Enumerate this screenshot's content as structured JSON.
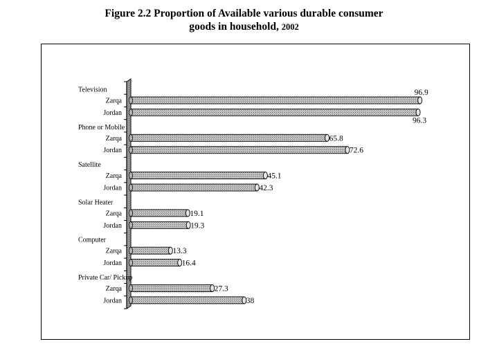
{
  "figure": {
    "title_line1": "Figure 2.2 Proportion of Available various durable consumer",
    "title_line2": "goods in household,",
    "title_year": "2002"
  },
  "chart_data": {
    "type": "bar",
    "orientation": "horizontal",
    "title": "Figure 2.2 Proportion of Available various durable consumer goods in household, 2002",
    "xlim": [
      0,
      100
    ],
    "grid": false,
    "legend": "none",
    "bar_color": "#bdbdbd",
    "groups": [
      {
        "category": "Television",
        "bars": [
          {
            "label": "Zarqa",
            "value": 96.9,
            "value_text": "96.9"
          },
          {
            "label": "Jordan",
            "value": 96.3,
            "value_text": "96.3"
          }
        ]
      },
      {
        "category": "Phone or Mobile",
        "bars": [
          {
            "label": "Zarqa",
            "value": 65.8,
            "value_text": "65.8"
          },
          {
            "label": "Jordan",
            "value": 72.6,
            "value_text": "72.6"
          }
        ]
      },
      {
        "category": "Satellite",
        "bars": [
          {
            "label": "Zarqa",
            "value": 45.1,
            "value_text": "45.1"
          },
          {
            "label": "Jordan",
            "value": 42.3,
            "value_text": "42.3"
          }
        ]
      },
      {
        "category": "Solar Heater",
        "bars": [
          {
            "label": "Zarqa",
            "value": 19.1,
            "value_text": "19.1"
          },
          {
            "label": "Jordan",
            "value": 19.3,
            "value_text": "19.3"
          }
        ]
      },
      {
        "category": "Computer",
        "bars": [
          {
            "label": "Zarqa",
            "value": 13.3,
            "value_text": "13.3"
          },
          {
            "label": "Jordan",
            "value": 16.4,
            "value_text": "16.4"
          }
        ]
      },
      {
        "category": "Private Car/ Pickup",
        "bars": [
          {
            "label": "Zarqa",
            "value": 27.3,
            "value_text": "27.3"
          },
          {
            "label": "Jordan",
            "value": 38,
            "value_text": "38"
          }
        ]
      }
    ]
  }
}
